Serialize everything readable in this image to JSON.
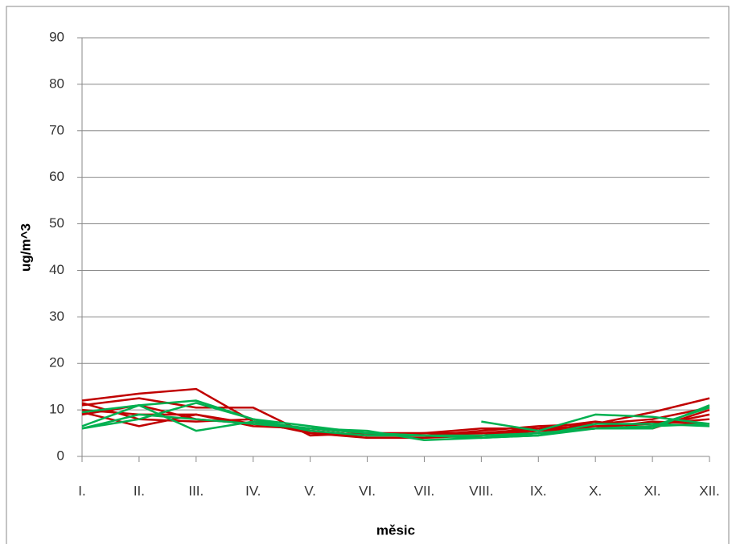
{
  "chart_data": {
    "type": "line",
    "x_label": "měsic",
    "y_label": "ug/m^3",
    "categories": [
      "I.",
      "II.",
      "III.",
      "IV.",
      "V.",
      "VI.",
      "VII.",
      "VIII.",
      "IX.",
      "X.",
      "XI.",
      "XII."
    ],
    "ylim": [
      0,
      90
    ],
    "yticks": [
      0,
      10,
      20,
      30,
      40,
      50,
      60,
      70,
      80,
      90
    ],
    "grid": true,
    "series": [
      {
        "color": "#c00000",
        "values": [
          12,
          13.5,
          14.5,
          7.5,
          5,
          4.5,
          4.5,
          5.5,
          6.5,
          7,
          9.5,
          12.5
        ]
      },
      {
        "color": "#c00000",
        "values": [
          11,
          12.5,
          10.5,
          10.5,
          4.5,
          5,
          5,
          6,
          6,
          7.5,
          6,
          10
        ]
      },
      {
        "color": "#c00000",
        "values": [
          9.5,
          6.5,
          9,
          7,
          5.5,
          4.5,
          5,
          5,
          6,
          6.5,
          7,
          8
        ]
      },
      {
        "color": "#c00000",
        "values": [
          9,
          11,
          8,
          7,
          5.5,
          4.5,
          4.5,
          4.5,
          6,
          6,
          7.5,
          7
        ]
      },
      {
        "color": "#c00000",
        "values": [
          10,
          9,
          9,
          6.5,
          6,
          5,
          4.5,
          5,
          5.5,
          7,
          8,
          10.5
        ]
      },
      {
        "color": "#c00000",
        "values": [
          11.5,
          8,
          7.5,
          8,
          5,
          4,
          4,
          4.5,
          5.5,
          6,
          6.5,
          9
        ]
      },
      {
        "color": "#00b050",
        "values": [
          6,
          8,
          11.5,
          8,
          6.5,
          5,
          4.5,
          4,
          4.5,
          6,
          6,
          11
        ]
      },
      {
        "color": "#00b050",
        "values": [
          6.5,
          11,
          5.5,
          7.5,
          6,
          5.5,
          3.5,
          4,
          4.5,
          7,
          7,
          6.5
        ]
      },
      {
        "color": "#00b050",
        "values": [
          9.5,
          11,
          12,
          8,
          5.5,
          4.5,
          4.5,
          4.5,
          5,
          6,
          6.5,
          10.5
        ]
      },
      {
        "color": "#00b050",
        "values": [
          null,
          null,
          null,
          null,
          null,
          null,
          null,
          7.5,
          5.5,
          9,
          8.5,
          7
        ]
      },
      {
        "color": "#00b050",
        "values": [
          6,
          9,
          8,
          7,
          6,
          5,
          4.5,
          4,
          5,
          6,
          6.5,
          7
        ]
      }
    ]
  }
}
